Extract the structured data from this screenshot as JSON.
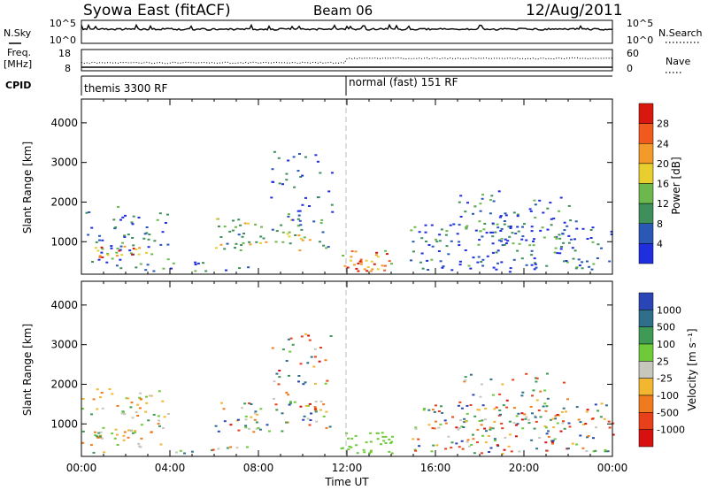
{
  "header": {
    "station": "Syowa East (fitACF)",
    "beam": "Beam 06",
    "date": "12/Aug/2011"
  },
  "nsky_panel": {
    "label": "N.Sky",
    "tick_top": "10^5",
    "tick_bottom": "10^0",
    "right_label": "N.Search",
    "right_tick_top": "10^5",
    "right_tick_bottom": "10^0"
  },
  "freq_panel": {
    "label_line1": "Freq.",
    "label_line2": "[MHz]",
    "tick_top": "18",
    "tick_bottom": "8",
    "right_label": "Nave",
    "right_tick_top": "60",
    "right_tick_bottom": "0"
  },
  "cpid_panel": {
    "label": "CPID",
    "mode1": "themis 3300 RF",
    "mode2": "normal (fast) 151 RF"
  },
  "chart_data": [
    {
      "type": "heatmap",
      "name": "power",
      "ylabel": "Slant Range [km]",
      "ylim": [
        180,
        4600
      ],
      "yticks": [
        1000,
        2000,
        3000,
        4000
      ],
      "xlim_hours": [
        0,
        24
      ],
      "colorbar": {
        "label": "Power [dB]",
        "ticks": [
          "4",
          "8",
          "12",
          "16",
          "20",
          "24",
          "28"
        ],
        "colors": [
          "#1f2fe0",
          "#2a58b5",
          "#3f8f5c",
          "#6cb84c",
          "#e8cf2f",
          "#f29a2a",
          "#f05a1e",
          "#d8180f"
        ]
      }
    },
    {
      "type": "heatmap",
      "name": "velocity",
      "ylabel": "Slant Range [km]",
      "ylim": [
        180,
        4600
      ],
      "yticks": [
        1000,
        2000,
        3000,
        4000
      ],
      "xlim_hours": [
        0,
        24
      ],
      "colorbar": {
        "label": "Velocity [m s⁻¹]",
        "ticks": [
          "1000",
          "500",
          "100",
          "25",
          "-25",
          "-100",
          "-500",
          "-1000"
        ],
        "colors": [
          "#2a45b5",
          "#2f6f8a",
          "#3f9a55",
          "#6fca3a",
          "#c7c7bd",
          "#f2b630",
          "#f07a1e",
          "#e8401a",
          "#d81010"
        ]
      }
    }
  ],
  "time_axis": {
    "ticks": [
      "00:00",
      "04:00",
      "08:00",
      "12:00",
      "16:00",
      "20:00",
      "00:00"
    ],
    "label": "Time UT"
  }
}
